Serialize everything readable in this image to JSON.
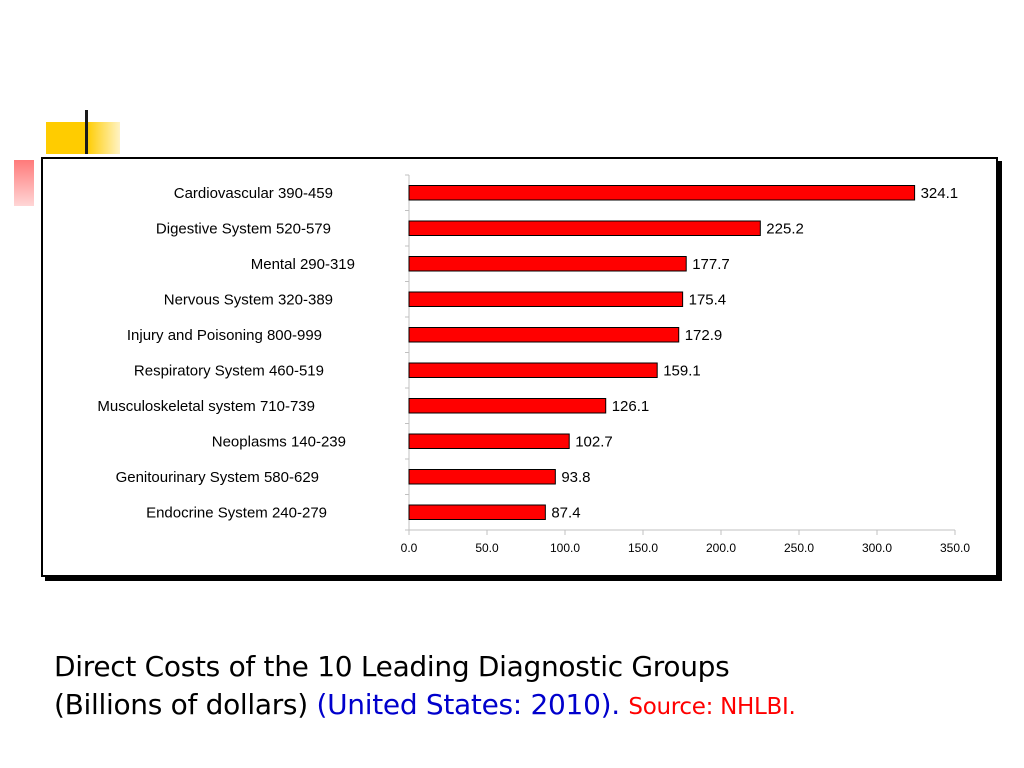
{
  "chart_data": {
    "type": "bar",
    "orientation": "horizontal",
    "categories": [
      "Cardiovascular 390-459",
      "Digestive System 520-579",
      "Mental 290-319",
      "Nervous System 320-389",
      "Injury and Poisoning 800-999",
      "Respiratory System 460-519",
      "Musculoskeletal system 710-739",
      "Neoplasms 140-239",
      "Genitourinary System 580-629",
      "Endocrine System 240-279"
    ],
    "values": [
      324.1,
      225.2,
      177.7,
      175.4,
      172.9,
      159.1,
      126.1,
      102.7,
      93.8,
      87.4
    ],
    "value_labels": [
      "324.1",
      "225.2",
      "177.7",
      "175.4",
      "172.9",
      "159.1",
      "126.1",
      "102.7",
      "93.8",
      "87.4"
    ],
    "x_ticks": [
      "0.0",
      "50.0",
      "100.0",
      "150.0",
      "200.0",
      "250.0",
      "300.0",
      "350.0"
    ],
    "xlim": [
      0,
      350
    ],
    "grid": false,
    "legend": "none",
    "bar_color": "#ff0000",
    "bar_outline": "#000000",
    "title": "",
    "xlabel": "",
    "ylabel": ""
  },
  "caption": {
    "line1": "Direct Costs of the 10 Leading Diagnostic Groups",
    "line2": "(Billions of dollars)",
    "context": "(United States: 2010).",
    "source": "Source: NHLBI."
  },
  "colors": {
    "caption_context": "#0000cc",
    "caption_source": "#ff0000",
    "accent_yellow": "#ffcc00"
  }
}
